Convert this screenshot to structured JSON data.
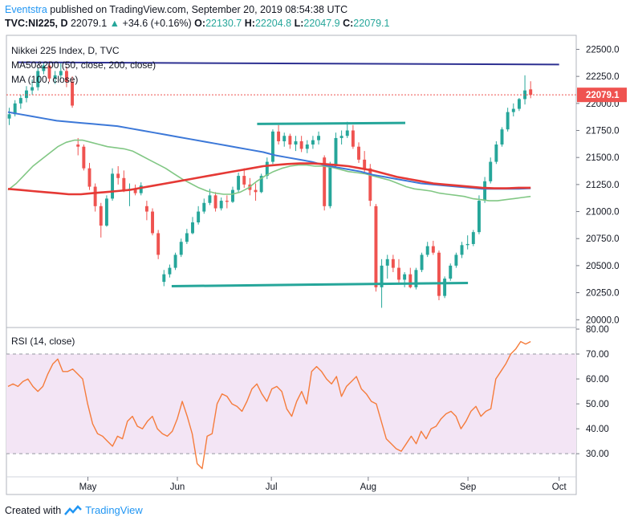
{
  "header": {
    "brand": "Eventstra",
    "published": "published on TradingView.com, September 20, 2019 08:54:38 UTC",
    "symbol": "TVC:NI225, D",
    "last": "22079.1",
    "change": "+34.6 (+0.16%)",
    "o_label": "O:",
    "o_val": "22130.7",
    "h_label": "H:",
    "h_val": "22204.8",
    "l_label": "L:",
    "l_val": "22047.9",
    "c_label": "C:",
    "c_val": "22079.1"
  },
  "footer": {
    "created": "Created with",
    "tv": "TradingView"
  },
  "colors": {
    "up": "#26a69a",
    "down": "#ef5350",
    "ma50": "#81c784",
    "ma100": "#e53935",
    "ma200": "#3c78d8",
    "rsi": "#f57c3c",
    "rsi_band": "#f3e5f5",
    "trend_top": "#2e3192",
    "trend_green": "#26a69a"
  },
  "chart_data": [
    {
      "type": "candlestick",
      "legend": [
        "Nikkei 225 Index, D, TVC",
        "MA50&200 (50, close, 200, close)",
        "MA (100, close)"
      ],
      "ylim": [
        19950,
        22600
      ],
      "y_ticks": [
        "22500.0",
        "22250.0",
        "22000.0",
        "21750.0",
        "21500.0",
        "21250.0",
        "21000.0",
        "20750.0",
        "20500.0",
        "20250.0",
        "20000.0"
      ],
      "x_ticks": [
        "May",
        "Jun",
        "Jul",
        "Aug",
        "Sep",
        "Oct"
      ],
      "last_price_label": "22079.1",
      "candles": [
        [
          21860,
          21960,
          21800,
          21900
        ],
        [
          21900,
          22030,
          21880,
          22000
        ],
        [
          22000,
          22080,
          21950,
          22050
        ],
        [
          22050,
          22160,
          22010,
          22120
        ],
        [
          22120,
          22220,
          22080,
          22150
        ],
        [
          22150,
          22330,
          22120,
          22300
        ],
        [
          22300,
          22380,
          22270,
          22350
        ],
        [
          22350,
          22390,
          22200,
          22230
        ],
        [
          22230,
          22300,
          22180,
          22260
        ],
        [
          22260,
          22380,
          22230,
          22300
        ],
        [
          22300,
          22340,
          22150,
          22200
        ],
        [
          22200,
          22250,
          21960,
          21980
        ],
        [
          21620,
          21680,
          21520,
          21600
        ],
        [
          21600,
          21620,
          21380,
          21400
        ],
        [
          21400,
          21450,
          21200,
          21230
        ],
        [
          21230,
          21260,
          21000,
          21050
        ],
        [
          21050,
          21080,
          20760,
          20870
        ],
        [
          20870,
          21150,
          20860,
          21120
        ],
        [
          21120,
          21400,
          21100,
          21350
        ],
        [
          21350,
          21420,
          21250,
          21310
        ],
        [
          21310,
          21380,
          21180,
          21200
        ],
        [
          21200,
          21260,
          21050,
          21210
        ],
        [
          21210,
          21250,
          21150,
          21170
        ],
        [
          21170,
          21270,
          21150,
          21240
        ],
        [
          21050,
          21100,
          20920,
          21000
        ],
        [
          21000,
          21030,
          20780,
          20800
        ],
        [
          20800,
          20830,
          20560,
          20600
        ],
        [
          20350,
          20460,
          20310,
          20420
        ],
        [
          20420,
          20510,
          20390,
          20480
        ],
        [
          20480,
          20620,
          20460,
          20600
        ],
        [
          20600,
          20750,
          20580,
          20720
        ],
        [
          20720,
          20840,
          20700,
          20800
        ],
        [
          20800,
          20950,
          20790,
          20900
        ],
        [
          20900,
          21050,
          20880,
          21000
        ],
        [
          21000,
          21120,
          20980,
          21080
        ],
        [
          21080,
          21210,
          21060,
          21150
        ],
        [
          21150,
          21180,
          21000,
          21030
        ],
        [
          21030,
          21130,
          21010,
          21100
        ],
        [
          21100,
          21150,
          21030,
          21090
        ],
        [
          21090,
          21230,
          21080,
          21200
        ],
        [
          21200,
          21360,
          21180,
          21330
        ],
        [
          21330,
          21400,
          21220,
          21250
        ],
        [
          21250,
          21310,
          21150,
          21200
        ],
        [
          21200,
          21260,
          21100,
          21180
        ],
        [
          21180,
          21350,
          21170,
          21330
        ],
        [
          21330,
          21500,
          21300,
          21460
        ],
        [
          21460,
          21760,
          21440,
          21740
        ],
        [
          21740,
          21800,
          21620,
          21650
        ],
        [
          21650,
          21730,
          21600,
          21700
        ],
        [
          21700,
          21720,
          21580,
          21620
        ],
        [
          21620,
          21700,
          21560,
          21650
        ],
        [
          21650,
          21700,
          21550,
          21580
        ],
        [
          21580,
          21660,
          21540,
          21620
        ],
        [
          21620,
          21700,
          21580,
          21660
        ],
        [
          21660,
          21740,
          21620,
          21700
        ],
        [
          21500,
          21520,
          21010,
          21050
        ],
        [
          21050,
          21460,
          21030,
          21420
        ],
        [
          21420,
          21730,
          21400,
          21680
        ],
        [
          21680,
          21750,
          21620,
          21700
        ],
        [
          21700,
          21830,
          21680,
          21750
        ],
        [
          21750,
          21800,
          21580,
          21600
        ],
        [
          21600,
          21640,
          21450,
          21480
        ],
        [
          21480,
          21560,
          21350,
          21400
        ],
        [
          21400,
          21440,
          21050,
          21100
        ],
        [
          21050,
          21070,
          20260,
          20300
        ],
        [
          20300,
          20560,
          20110,
          20500
        ],
        [
          20500,
          20600,
          20380,
          20560
        ],
        [
          20560,
          20600,
          20440,
          20480
        ],
        [
          20480,
          20560,
          20340,
          20370
        ],
        [
          20370,
          20440,
          20300,
          20420
        ],
        [
          20420,
          20480,
          20290,
          20300
        ],
        [
          20300,
          20480,
          20280,
          20460
        ],
        [
          20460,
          20620,
          20440,
          20600
        ],
        [
          20600,
          20720,
          20580,
          20680
        ],
        [
          20680,
          20730,
          20600,
          20620
        ],
        [
          20620,
          20640,
          20180,
          20220
        ],
        [
          20220,
          20400,
          20200,
          20380
        ],
        [
          20380,
          20520,
          20360,
          20500
        ],
        [
          20500,
          20620,
          20480,
          20600
        ],
        [
          20600,
          20720,
          20570,
          20690
        ],
        [
          20690,
          20780,
          20650,
          20700
        ],
        [
          20700,
          20830,
          20680,
          20810
        ],
        [
          20810,
          21150,
          20790,
          21100
        ],
        [
          21100,
          21320,
          21080,
          21280
        ],
        [
          21280,
          21500,
          21260,
          21460
        ],
        [
          21460,
          21650,
          21440,
          21620
        ],
        [
          21620,
          21780,
          21600,
          21760
        ],
        [
          21760,
          21960,
          21740,
          21920
        ],
        [
          21920,
          22000,
          21880,
          21950
        ],
        [
          21950,
          22050,
          21930,
          22040
        ],
        [
          22040,
          22260,
          21990,
          22120
        ],
        [
          22130,
          22205,
          22048,
          22079
        ]
      ],
      "trendlines": [
        {
          "from": [
            0.02,
            22380
          ],
          "to": [
            0.97,
            22360
          ],
          "color": "trend_top"
        },
        {
          "from": [
            0.44,
            21810
          ],
          "to": [
            0.7,
            21820
          ],
          "color": "trend_green"
        },
        {
          "from": [
            0.29,
            20310
          ],
          "to": [
            0.81,
            20340
          ],
          "color": "trend_green"
        }
      ],
      "ma50": [
        21200,
        21260,
        21340,
        21420,
        21480,
        21540,
        21600,
        21640,
        21660,
        21660,
        21640,
        21620,
        21600,
        21590,
        21580,
        21560,
        21520,
        21480,
        21440,
        21400,
        21350,
        21300,
        21260,
        21220,
        21190,
        21170,
        21160,
        21160,
        21180,
        21220,
        21280,
        21330,
        21370,
        21400,
        21420,
        21430,
        21430,
        21420,
        21420,
        21410,
        21390,
        21370,
        21360,
        21350,
        21330,
        21310,
        21290,
        21260,
        21230,
        21210,
        21200,
        21190,
        21170,
        21160,
        21150,
        21140,
        21120,
        21110,
        21100,
        21100,
        21110,
        21120,
        21130,
        21140
      ],
      "ma100": [
        21210,
        21200,
        21190,
        21180,
        21170,
        21160,
        21160,
        21170,
        21180,
        21190,
        21200,
        21220,
        21240,
        21260,
        21280,
        21300,
        21320,
        21340,
        21360,
        21380,
        21400,
        21420,
        21430,
        21440,
        21445,
        21445,
        21440,
        21430,
        21420,
        21400,
        21380,
        21350,
        21320,
        21300,
        21280,
        21260,
        21250,
        21240,
        21230,
        21220,
        21215,
        21215,
        21220,
        21220
      ],
      "ma200": [
        21920,
        21900,
        21880,
        21860,
        21840,
        21830,
        21820,
        21810,
        21800,
        21790,
        21770,
        21750,
        21730,
        21710,
        21690,
        21670,
        21650,
        21630,
        21610,
        21590,
        21570,
        21550,
        21520,
        21500,
        21480,
        21460,
        21430,
        21410,
        21390,
        21370,
        21340,
        21320,
        21300,
        21280,
        21260,
        21250,
        21240,
        21230,
        21220,
        21210,
        21210,
        21210,
        21210,
        21215
      ]
    },
    {
      "type": "line",
      "legend": "RSI (14, close)",
      "ylim": [
        22,
        80
      ],
      "y_ticks": [
        "80.00",
        "70.00",
        "60.00",
        "50.00",
        "40.00",
        "30.00"
      ],
      "band": [
        30,
        70
      ],
      "values": [
        57,
        58,
        57,
        59,
        60,
        57,
        55,
        57,
        62,
        66,
        68,
        63,
        63,
        64,
        62,
        60,
        50,
        42,
        38,
        37,
        35,
        33,
        37,
        36,
        43,
        45,
        41,
        40,
        43,
        45,
        40,
        38,
        37,
        39,
        44,
        51,
        45,
        38,
        26,
        24,
        37,
        38,
        50,
        54,
        53,
        50,
        49,
        47,
        51,
        56,
        58,
        54,
        51,
        56,
        57,
        55,
        48,
        45,
        51,
        55,
        50,
        63,
        65,
        63,
        60,
        58,
        61,
        53,
        57,
        59,
        61,
        56,
        54,
        51,
        50,
        43,
        36,
        34,
        32,
        31,
        34,
        37,
        34,
        39,
        36,
        40,
        41,
        44,
        46,
        47,
        45,
        40,
        43,
        47,
        49,
        45,
        47,
        48,
        60,
        63,
        66,
        70,
        72,
        75,
        74,
        75
      ]
    }
  ]
}
